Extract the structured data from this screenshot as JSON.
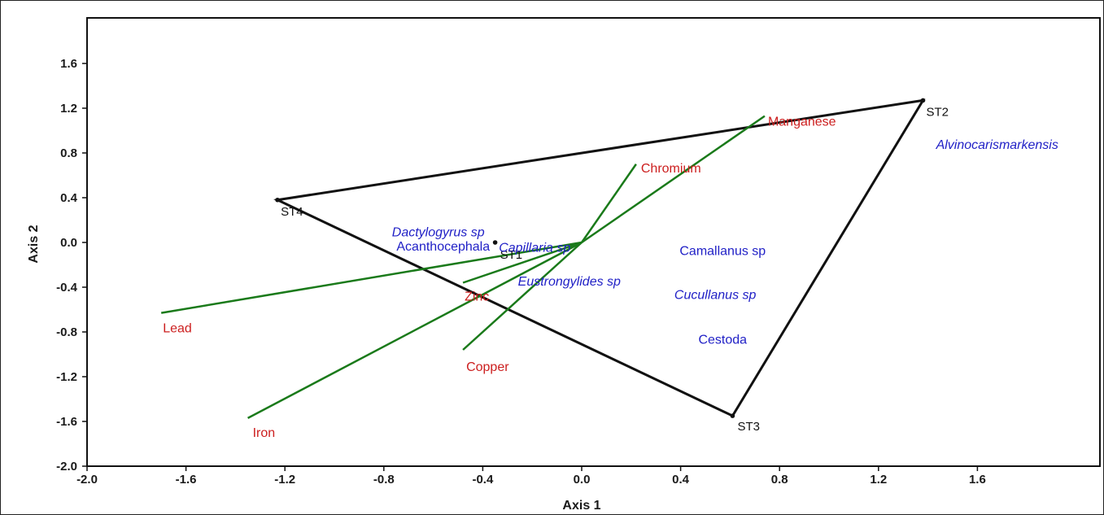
{
  "chart_data": {
    "type": "scatter",
    "title": "",
    "xlabel": "Axis 1",
    "ylabel": "Axis 2",
    "xlim": [
      -2.0,
      2.0
    ],
    "ylim": [
      -2.0,
      2.0
    ],
    "xticks": [
      "-2.0",
      "-1.6",
      "-1.2",
      "-0.8",
      "-0.4",
      "0.0",
      "0.4",
      "0.8",
      "1.2",
      "1.6"
    ],
    "yticks": [
      "1.6",
      "1.2",
      "0.8",
      "0.4",
      "0.0",
      "-0.4",
      "-0.8",
      "-1.2",
      "-1.6",
      "-2.0"
    ],
    "grid": false,
    "colors": {
      "sites": "#111111",
      "environmental": "#cc1e1e",
      "taxa": "#1f1fc6",
      "vectors": "#1a7a1a"
    },
    "sites": [
      {
        "label": "ST1",
        "x": -0.35,
        "y": 0.0
      },
      {
        "label": "ST2",
        "x": 1.38,
        "y": 1.27
      },
      {
        "label": "ST3",
        "x": 0.61,
        "y": -1.55
      },
      {
        "label": "ST4",
        "x": -1.23,
        "y": 0.38
      }
    ],
    "hull_order": [
      "ST4",
      "ST2",
      "ST3"
    ],
    "environmental_vectors": [
      {
        "label": "Manganese",
        "x": 0.74,
        "y": 1.13
      },
      {
        "label": "Chromium",
        "x": 0.22,
        "y": 0.7
      },
      {
        "label": "Zinc",
        "x": -0.48,
        "y": -0.36
      },
      {
        "label": "Lead",
        "x": -1.7,
        "y": -0.63
      },
      {
        "label": "Copper",
        "x": -0.48,
        "y": -0.96
      },
      {
        "label": "Iron",
        "x": -1.35,
        "y": -1.57
      }
    ],
    "taxa": [
      {
        "label": "Alvinocarismarkensis",
        "x": 1.68,
        "y": 0.88,
        "italic": true
      },
      {
        "label": "Dactylogyrus sp",
        "x": -0.58,
        "y": 0.1,
        "italic": true
      },
      {
        "label": "Acanthocephala",
        "x": -0.56,
        "y": -0.03,
        "italic": false
      },
      {
        "label": "Capillaria sp",
        "x": -0.19,
        "y": -0.04,
        "italic": true
      },
      {
        "label": "Camallanus sp",
        "x": 0.57,
        "y": -0.07,
        "italic": false
      },
      {
        "label": "Eustrongylides sp",
        "x": -0.05,
        "y": -0.34,
        "italic": true
      },
      {
        "label": "Cucullanus sp",
        "x": 0.54,
        "y": -0.46,
        "italic": true
      },
      {
        "label": "Cestoda",
        "x": 0.57,
        "y": -0.86,
        "italic": false
      }
    ]
  }
}
